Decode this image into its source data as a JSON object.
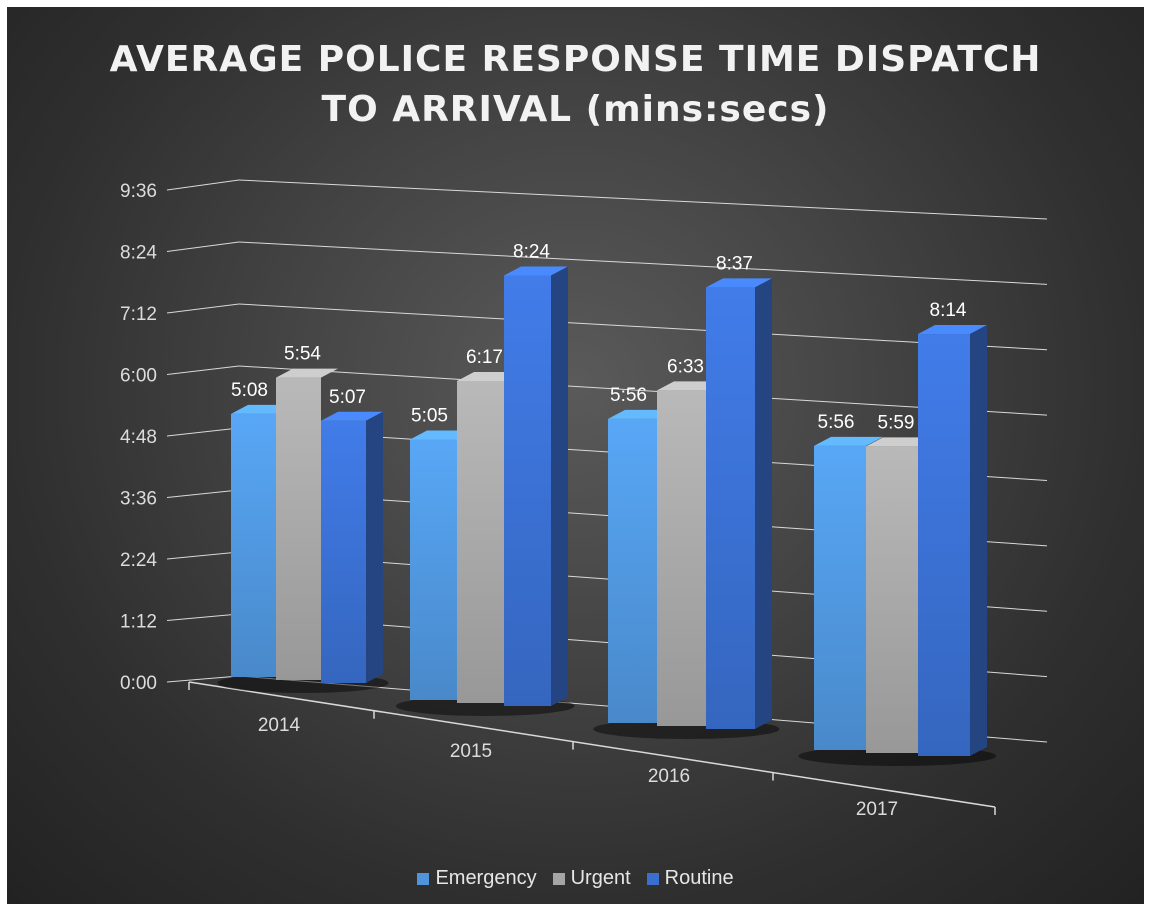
{
  "chart_data": {
    "type": "bar",
    "title_lines": [
      "AVERAGE POLICE RESPONSE TIME DISPATCH",
      "TO ARRIVAL (mins:secs)"
    ],
    "categories": [
      "2014",
      "2015",
      "2016",
      "2017"
    ],
    "y_ticks": [
      "0:00",
      "1:12",
      "2:24",
      "3:36",
      "4:48",
      "6:00",
      "7:12",
      "8:24",
      "9:36"
    ],
    "ylim_seconds": [
      0,
      576
    ],
    "series": [
      {
        "name": "Emergency",
        "color": "#4f95dc",
        "labels": [
          "5:08",
          "5:05",
          "5:56",
          "5:56"
        ],
        "values_seconds": [
          308,
          305,
          356,
          356
        ]
      },
      {
        "name": "Urgent",
        "color": "#a5a5a5",
        "labels": [
          "5:54",
          "6:17",
          "6:33",
          "5:59"
        ],
        "values_seconds": [
          354,
          377,
          393,
          359
        ]
      },
      {
        "name": "Routine",
        "color": "#3a6fd0",
        "labels": [
          "5:07",
          "8:24",
          "8:37",
          "8:14"
        ],
        "values_seconds": [
          307,
          504,
          517,
          494
        ]
      }
    ],
    "grid": true,
    "legend": "bottom"
  }
}
